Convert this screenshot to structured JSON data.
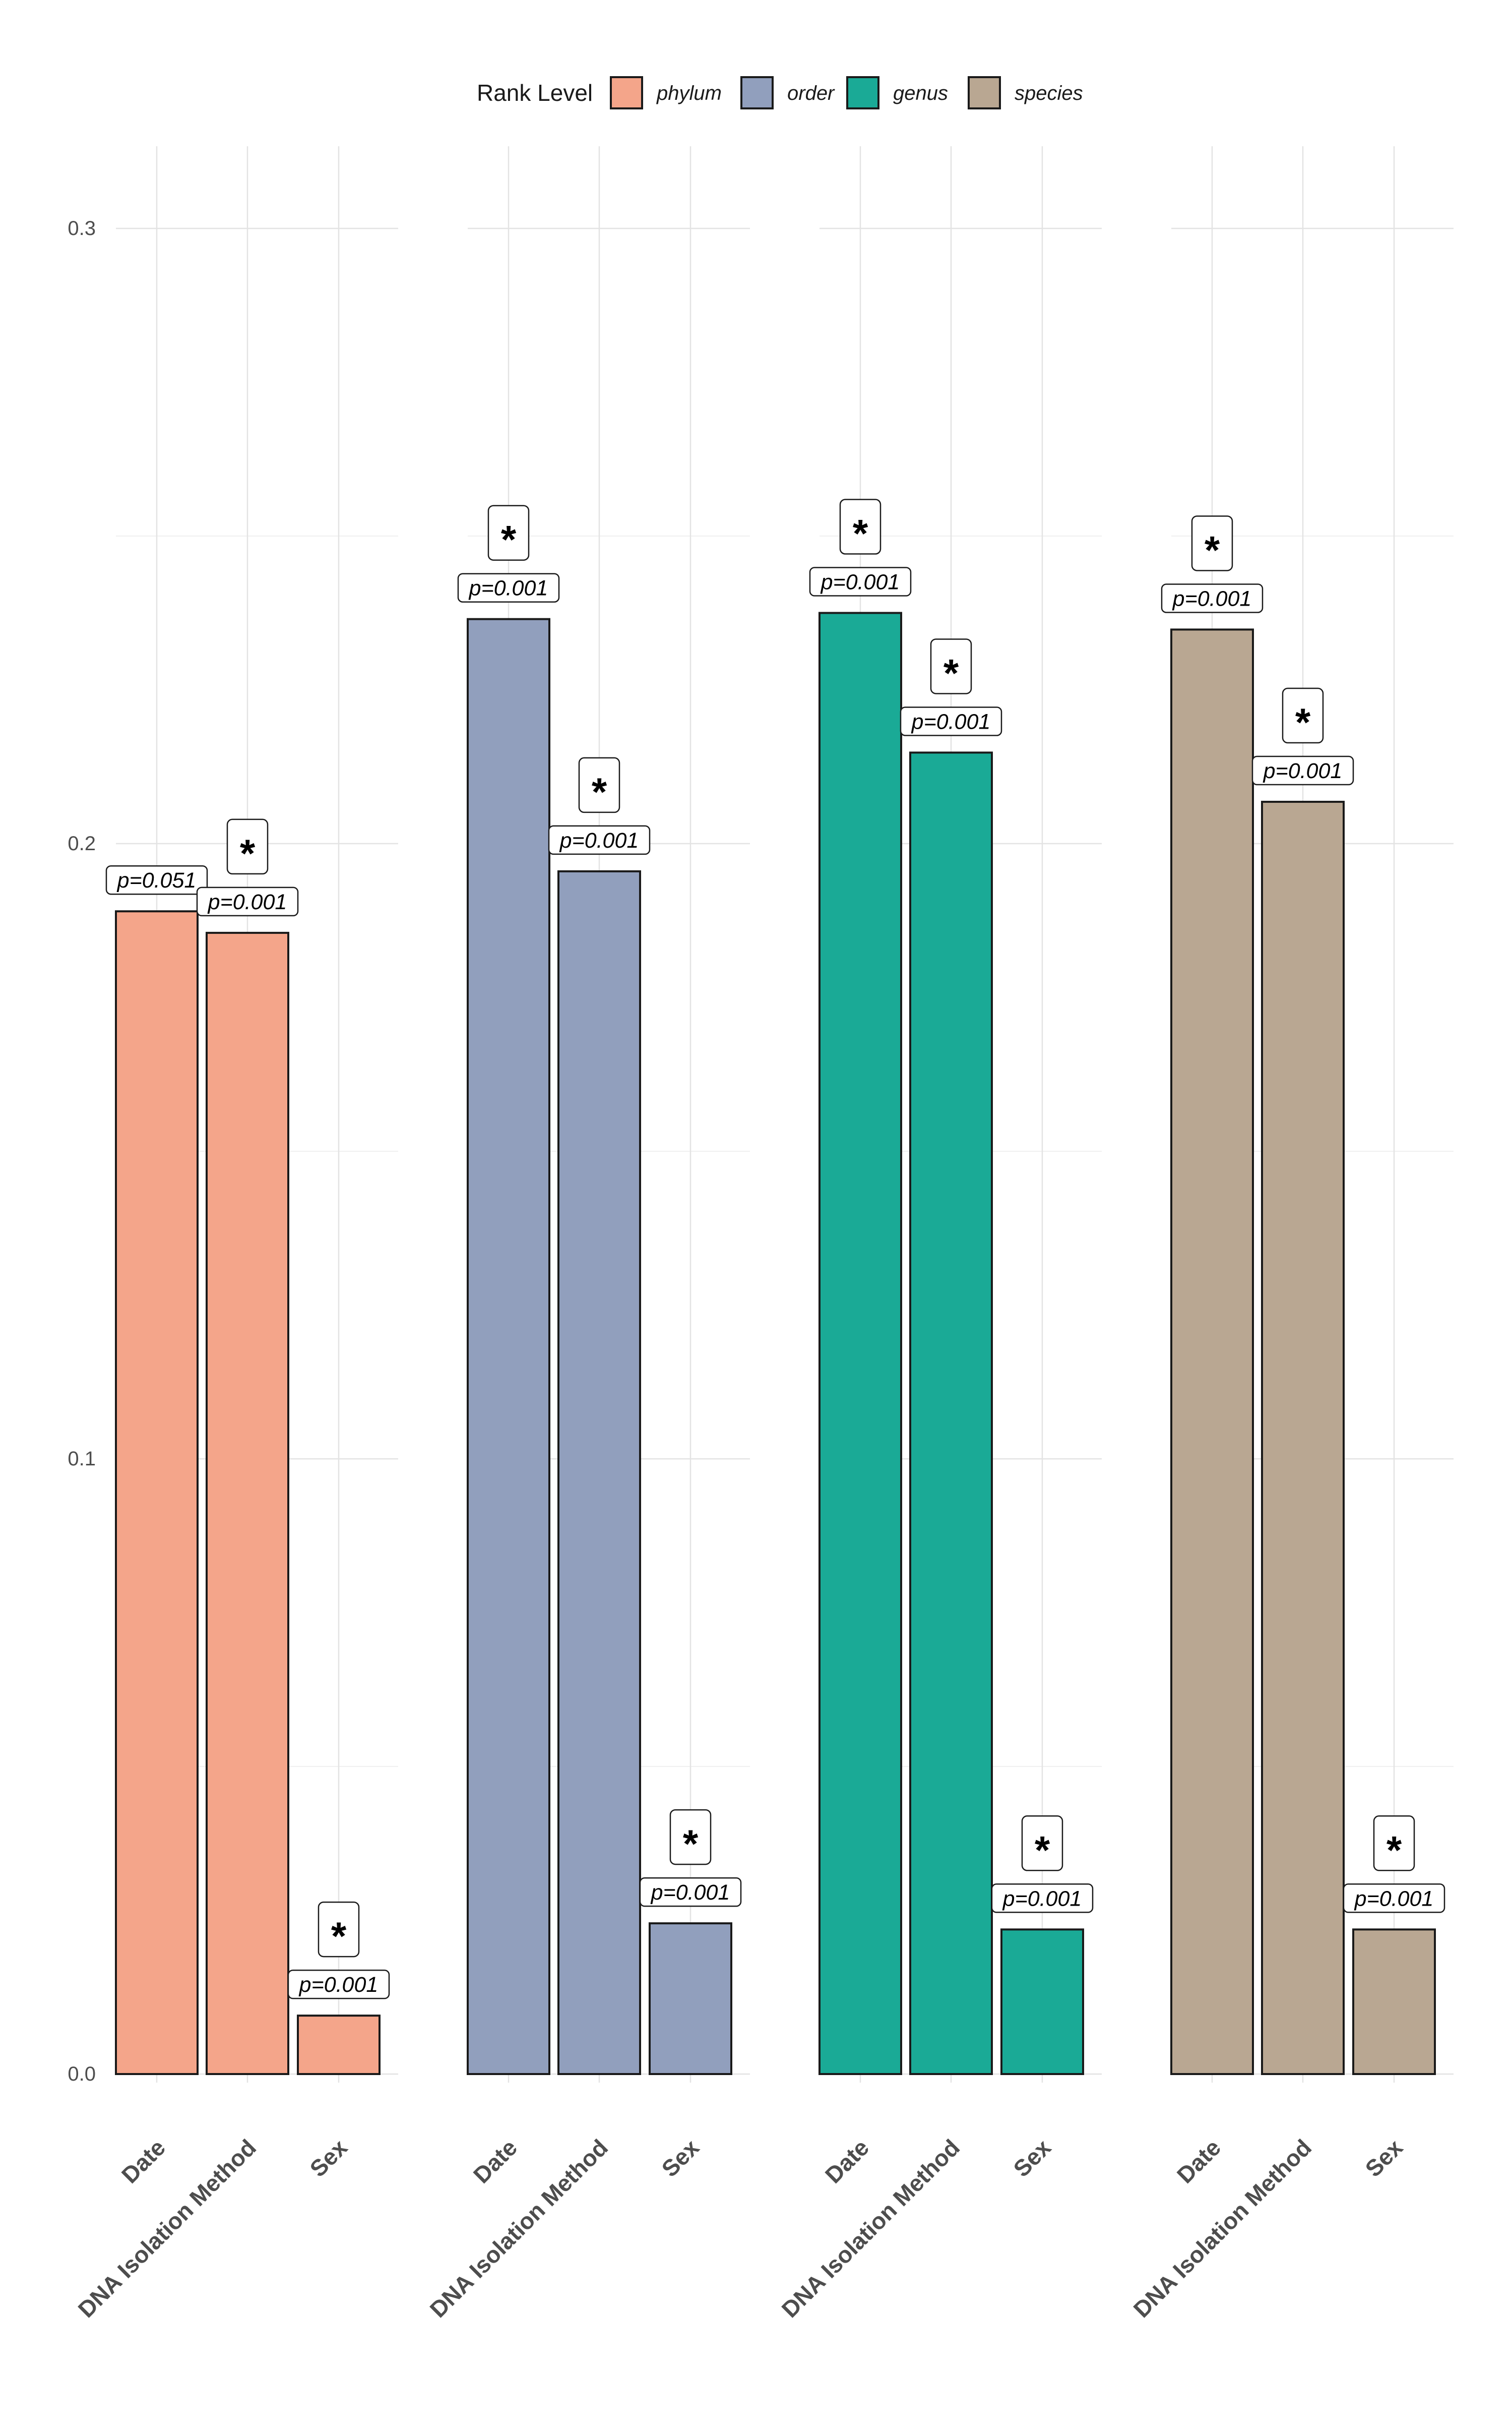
{
  "chart_data": {
    "type": "bar",
    "facets": [
      "phylum",
      "order",
      "genus",
      "species"
    ],
    "categories": [
      "Date",
      "DNA Isolation Method",
      "Sex"
    ],
    "series": [
      {
        "name": "phylum",
        "color": "#F4A58A",
        "values": [
          0.189,
          0.1855,
          0.0095
        ],
        "pvalues": [
          "p=0.051",
          "p=0.001",
          "p=0.001"
        ],
        "significant": [
          false,
          true,
          true
        ]
      },
      {
        "name": "order",
        "color": "#919FBD",
        "values": [
          0.2365,
          0.1955,
          0.0245
        ],
        "pvalues": [
          "p=0.001",
          "p=0.001",
          "p=0.001"
        ],
        "significant": [
          true,
          true,
          true
        ]
      },
      {
        "name": "genus",
        "color": "#1AAA96",
        "values": [
          0.2375,
          0.2148,
          0.0235
        ],
        "pvalues": [
          "p=0.001",
          "p=0.001",
          "p=0.001"
        ],
        "significant": [
          true,
          true,
          true
        ]
      },
      {
        "name": "species",
        "color": "#B9A792",
        "values": [
          0.2348,
          0.2068,
          0.0235
        ],
        "pvalues": [
          "p=0.001",
          "p=0.001",
          "p=0.001"
        ],
        "significant": [
          true,
          true,
          true
        ]
      }
    ],
    "legend": {
      "title": "Rank Level",
      "position": "top",
      "entries": [
        "phylum",
        "order",
        "genus",
        "species"
      ]
    },
    "significance_marker": "*",
    "y_ticks": [
      "0.0",
      "0.1",
      "0.2",
      "0.3"
    ],
    "ylim": [
      -0.01,
      0.315
    ],
    "grid": true,
    "title": "",
    "xlabel": "",
    "ylabel": ""
  }
}
